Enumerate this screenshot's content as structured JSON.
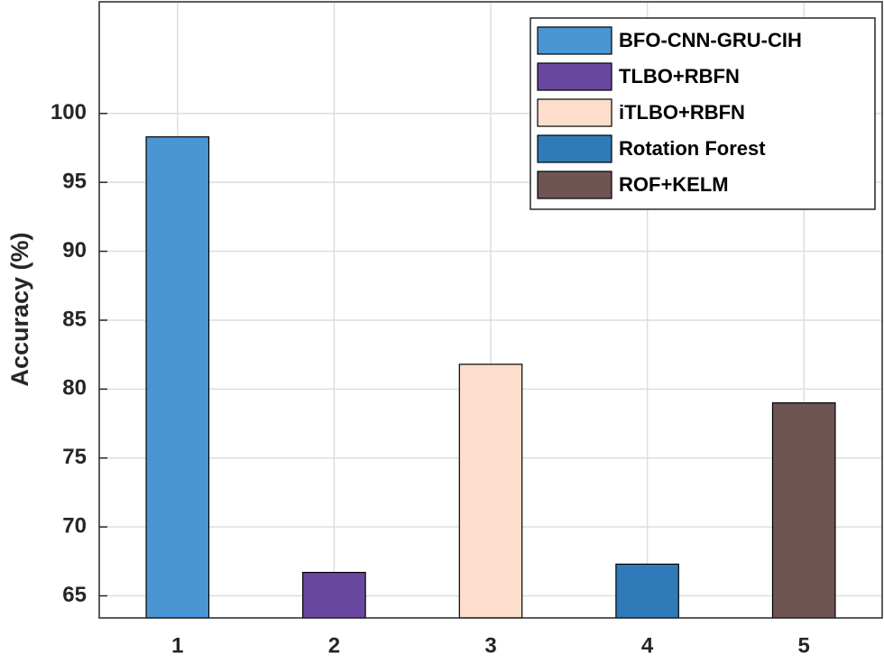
{
  "chart_data": {
    "type": "bar",
    "ylabel": "Accuracy (%)",
    "x": [
      1,
      2,
      3,
      4,
      5
    ],
    "series": [
      {
        "name": "BFO-CNN-GRU-CIH",
        "color": "#4a96d5",
        "values": [
          98.3,
          null,
          null,
          null,
          null
        ]
      },
      {
        "name": "TLBO+RBFN",
        "color": "#6a489f",
        "values": [
          null,
          66.7,
          null,
          null,
          null
        ]
      },
      {
        "name": "iTLBO+RBFN",
        "color": "#fdddcb",
        "values": [
          null,
          null,
          81.8,
          null,
          null
        ]
      },
      {
        "name": "Rotation Forest",
        "color": "#2f7bb9",
        "values": [
          null,
          null,
          null,
          67.3,
          null
        ]
      },
      {
        "name": "ROF+KELM",
        "color": "#6e5452",
        "values": [
          null,
          null,
          null,
          null,
          79.0
        ]
      }
    ],
    "xlim": [
      0.5,
      5.5
    ],
    "xticks": [
      1,
      2,
      3,
      4,
      5
    ],
    "ylim": [
      63.4,
      108.1
    ],
    "yticks": [
      65,
      70,
      75,
      80,
      85,
      90,
      95,
      100
    ],
    "grid": true,
    "legend": "top-right"
  }
}
